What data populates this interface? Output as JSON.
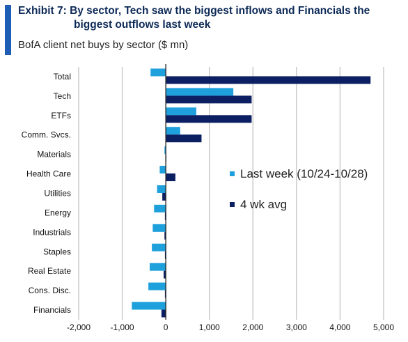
{
  "header": {
    "title_line1": "Exhibit 7: By sector, Tech saw the biggest inflows and Financials the",
    "title_line2": "biggest outflows last week",
    "subtitle": "BofA client net buys by sector ($ mn)"
  },
  "chart_data": {
    "type": "bar",
    "orientation": "horizontal",
    "title": "Exhibit 7: By sector, Tech saw the biggest inflows and Financials the biggest outflows last week",
    "subtitle": "BofA client net buys by sector ($ mn)",
    "categories": [
      "Total",
      "Tech",
      "ETFs",
      "Comm. Svcs.",
      "Materials",
      "Health Care",
      "Utilities",
      "Energy",
      "Industrials",
      "Staples",
      "Real Estate",
      "Cons. Disc.",
      "Financials"
    ],
    "series": [
      {
        "name": "Last week (10/24-10/28)",
        "color": "#1ea0dc",
        "values": [
          -350,
          1550,
          700,
          330,
          -30,
          -140,
          -200,
          -270,
          -300,
          -320,
          -370,
          -400,
          -780
        ]
      },
      {
        "name": "4 wk avg",
        "color": "#0b1f62",
        "values": [
          4700,
          1970,
          1970,
          820,
          -10,
          220,
          -80,
          -20,
          -30,
          -20,
          -50,
          -20,
          -100
        ]
      }
    ],
    "xlim": [
      -2000,
      5000
    ],
    "xticks": [
      -2000,
      -1000,
      0,
      1000,
      2000,
      3000,
      4000,
      5000
    ],
    "xtick_labels": [
      "-2,000",
      "-1,000",
      "0",
      "1,000",
      "2,000",
      "3,000",
      "4,000",
      "5,000"
    ],
    "grid": true,
    "legend_position": "right-middle",
    "xlabel": "",
    "ylabel": ""
  }
}
